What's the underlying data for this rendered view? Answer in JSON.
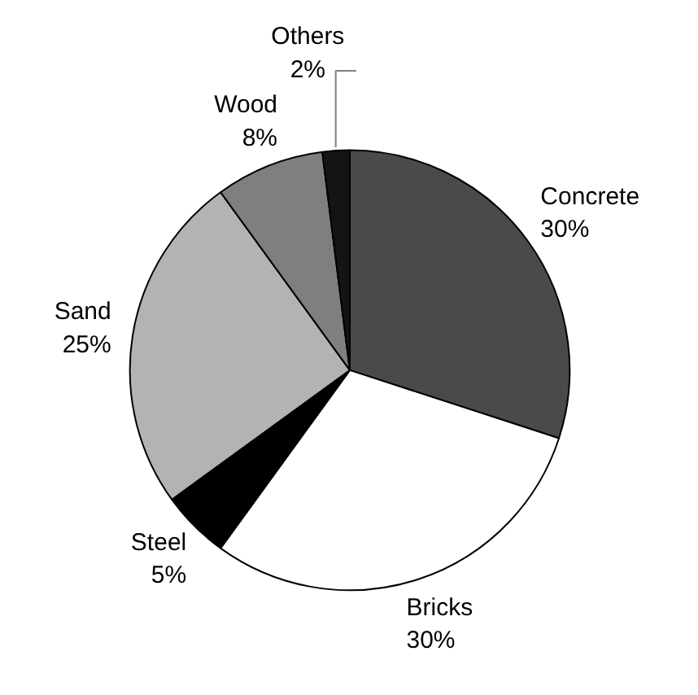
{
  "chart_data": {
    "type": "pie",
    "categories": [
      "Concrete",
      "Bricks",
      "Steel",
      "Sand",
      "Wood",
      "Others"
    ],
    "values": [
      30,
      30,
      5,
      25,
      8,
      2
    ],
    "value_labels": [
      "30%",
      "30%",
      "5%",
      "25%",
      "8%",
      "2%"
    ],
    "colors": [
      "#4a4a4a",
      "#ffffff",
      "#000000",
      "#b3b3b3",
      "#7f7f7f",
      "#141414"
    ]
  }
}
